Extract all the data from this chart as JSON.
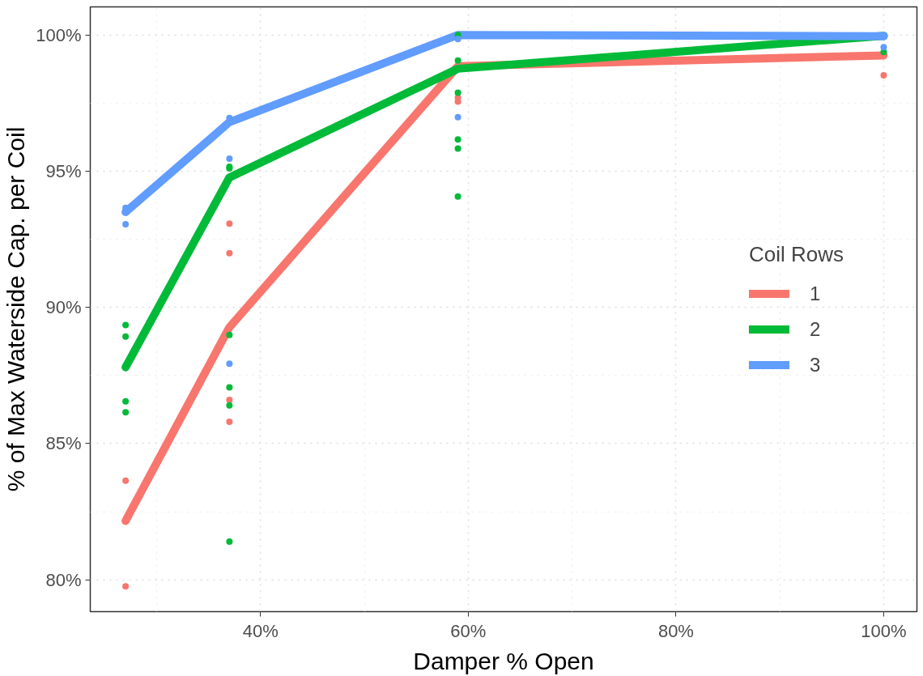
{
  "chart_data": {
    "type": "line",
    "xlabel": "Damper % Open",
    "ylabel": "% of Max Waterside Cap. per Coil",
    "legend_title": "Coil Rows",
    "xlim": [
      23.6,
      103.2
    ],
    "ylim": [
      78.83,
      101.03
    ],
    "xticks": [
      {
        "value": 40,
        "label": "40%"
      },
      {
        "value": 60,
        "label": "60%"
      },
      {
        "value": 80,
        "label": "80%"
      },
      {
        "value": 100,
        "label": "100%"
      }
    ],
    "yticks": [
      {
        "value": 80,
        "label": "80%"
      },
      {
        "value": 85,
        "label": "85%"
      },
      {
        "value": 90,
        "label": "90%"
      },
      {
        "value": 95,
        "label": "95%"
      },
      {
        "value": 100,
        "label": "100%"
      }
    ],
    "grid": true,
    "legend": "right",
    "series": [
      {
        "name": "1",
        "color": "#f8766d",
        "x": [
          27,
          37,
          59,
          100
        ],
        "values": [
          82.16,
          89.27,
          98.85,
          99.25
        ]
      },
      {
        "name": "2",
        "color": "#00ba38",
        "x": [
          27,
          37,
          59,
          100
        ],
        "values": [
          87.8,
          94.77,
          98.76,
          99.97
        ]
      },
      {
        "name": "3",
        "color": "#619cff",
        "x": [
          27,
          37,
          59,
          100
        ],
        "values": [
          93.5,
          96.8,
          100,
          99.95
        ]
      },
      {
        "type": "scatter",
        "color": "#f8766d",
        "x": [
          27,
          27,
          37,
          37,
          37,
          37,
          59,
          59,
          100
        ],
        "values": [
          83.64,
          79.76,
          93.07,
          91.99,
          86.6,
          85.8,
          97.7,
          97.55,
          98.52
        ]
      },
      {
        "type": "scatter",
        "color": "#00ba38",
        "x": [
          27,
          27,
          27,
          27,
          37,
          37,
          37,
          37,
          37,
          37,
          59,
          59,
          59,
          59,
          59,
          59,
          100
        ],
        "values": [
          89.35,
          88.93,
          86.55,
          86.15,
          95.1,
          95.16,
          88.99,
          87.06,
          86.4,
          81.4,
          100,
          99.06,
          97.88,
          96.16,
          95.83,
          94.07,
          99.37
        ]
      },
      {
        "type": "scatter",
        "color": "#619cff",
        "x": [
          27,
          27,
          37,
          37,
          37,
          59,
          59,
          100,
          100
        ],
        "values": [
          93.65,
          93.05,
          96.95,
          95.46,
          87.93,
          99.85,
          96.98,
          100,
          99.55
        ]
      }
    ]
  }
}
